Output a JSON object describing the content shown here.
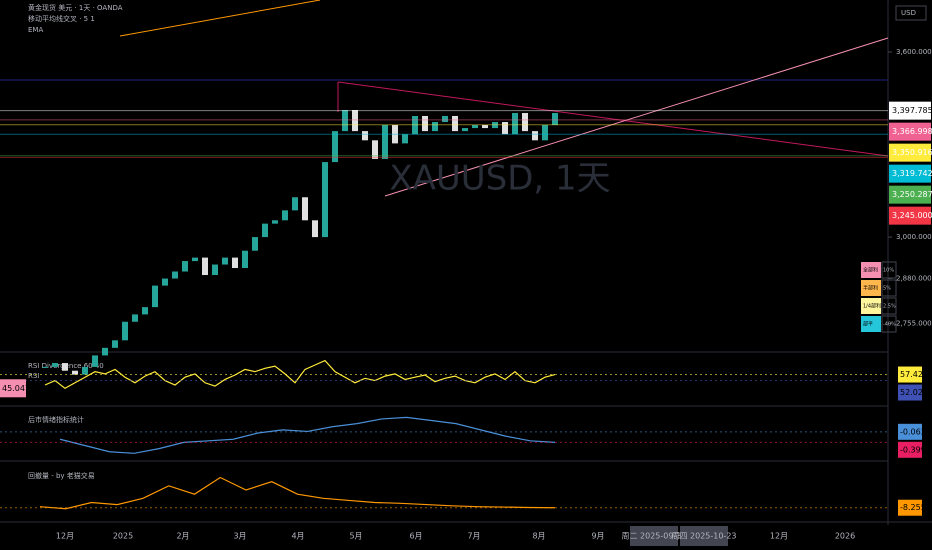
{
  "chart_data": {
    "type": "candlestick",
    "header": {
      "symbol": "黄金现货 美元 · 1天 · OANDA",
      "indicator": "移动平均线交叉 · 5 1",
      "ema": "EMA",
      "currency": "USD",
      "watermark": "XAUUSD, 1天"
    },
    "closes": [
      2640,
      2650,
      2630,
      2620,
      2640,
      2670,
      2690,
      2710,
      2760,
      2780,
      2800,
      2860,
      2880,
      2900,
      2930,
      2940,
      2890,
      2920,
      2940,
      2910,
      2960,
      3000,
      3040,
      3050,
      3080,
      3120,
      3050,
      3000,
      3230,
      3330,
      3400,
      3330,
      3300,
      3240,
      3350,
      3290,
      3320,
      3380,
      3330,
      3360,
      3380,
      3330,
      3340,
      3350,
      3340,
      3360,
      3320,
      3390,
      3330,
      3300,
      3350,
      3390
    ],
    "color_up": "#26a69a",
    "color_down": "#e0e0e0",
    "ylim": [
      2679,
      3789
    ],
    "log": true,
    "yticks": [
      {
        "value": 3600,
        "label": "3,600.000"
      },
      {
        "value": 3000,
        "label": "3,000.000"
      },
      {
        "value": 2880,
        "label": "2,880.000"
      },
      {
        "value": 2755,
        "label": "2,755.000"
      }
    ],
    "price_tags": [
      {
        "value": 3397.785,
        "label": "3,397.785",
        "color": "#ffffff"
      },
      {
        "value": 3366.998,
        "label": "3,366.998",
        "color": "#f06292"
      },
      {
        "value": 3350.916,
        "label": "3,350.916",
        "color": "#ffeb3b"
      },
      {
        "value": 3319.742,
        "label": "3,319.742",
        "color": "#00bcd4"
      },
      {
        "value": 3250.287,
        "label": "3,250.287",
        "color": "#4caf50"
      },
      {
        "value": 3245,
        "label": "3,245.000",
        "color": "#f23645"
      }
    ],
    "time_labels": [
      "12月",
      "2025",
      "2月",
      "3月",
      "4月",
      "5月",
      "6月",
      "7月",
      "8月",
      "9月",
      "周二 2025-09-30",
      "周四 2025-10-23",
      "12月",
      "2026"
    ],
    "legend_box": [
      [
        "全部利",
        "10%"
      ],
      [
        "半部利",
        "5%"
      ],
      [
        "1/4部利",
        "2.5%"
      ],
      [
        "部平",
        "-40%"
      ]
    ],
    "rsi": {
      "title": "RSI Divergence 60 40",
      "name": "RSI",
      "ylim": [
        30,
        75
      ],
      "values": [
        48,
        52,
        45,
        50,
        55,
        60,
        58,
        62,
        55,
        50,
        56,
        60,
        52,
        48,
        55,
        58,
        50,
        47,
        53,
        57,
        62,
        60,
        63,
        65,
        58,
        50,
        62,
        66,
        70,
        60,
        55,
        50,
        54,
        52,
        56,
        58,
        53,
        55,
        57,
        51,
        54,
        56,
        52,
        50,
        55,
        58,
        53,
        60,
        52,
        50,
        55,
        57.42
      ],
      "tags": [
        {
          "value": 57.42,
          "label": "57.42",
          "color": "#ffeb3b"
        },
        {
          "value": 52.02,
          "label": "52.02",
          "color": "#3f51b5"
        }
      ],
      "left_tag": {
        "value": 45.047,
        "label": "45.047",
        "color": "#f48fb1"
      }
    },
    "sentiment": {
      "title": "后市情绪指标统计",
      "ylim": [
        -0.9,
        0.7
      ],
      "values": [
        -0.3,
        -0.5,
        -0.7,
        -0.75,
        -0.6,
        -0.4,
        -0.35,
        -0.3,
        -0.1,
        0.0,
        -0.05,
        0.1,
        0.2,
        0.35,
        0.4,
        0.3,
        0.2,
        0.0,
        -0.2,
        -0.35,
        -0.399
      ],
      "tags": [
        {
          "value": -0.062,
          "label": "-0.062",
          "color": "#4a90d9"
        },
        {
          "value": -0.399,
          "label": "-0.399",
          "color": "#e91e63"
        }
      ]
    },
    "drawdown": {
      "title": "回撤量 - by 老猫交易",
      "ylim": [
        -10,
        2
      ],
      "values": [
        -8,
        -8.5,
        -7,
        -7.5,
        -6,
        -3,
        -5,
        -1,
        -4,
        -2,
        -5,
        -6,
        -6.5,
        -7,
        -7.2,
        -7.5,
        -7.8,
        -8,
        -8.1,
        -8.2,
        -8.255
      ],
      "tags": [
        {
          "value": -8.255,
          "label": "-8.255",
          "color": "#ff9800"
        }
      ]
    }
  }
}
